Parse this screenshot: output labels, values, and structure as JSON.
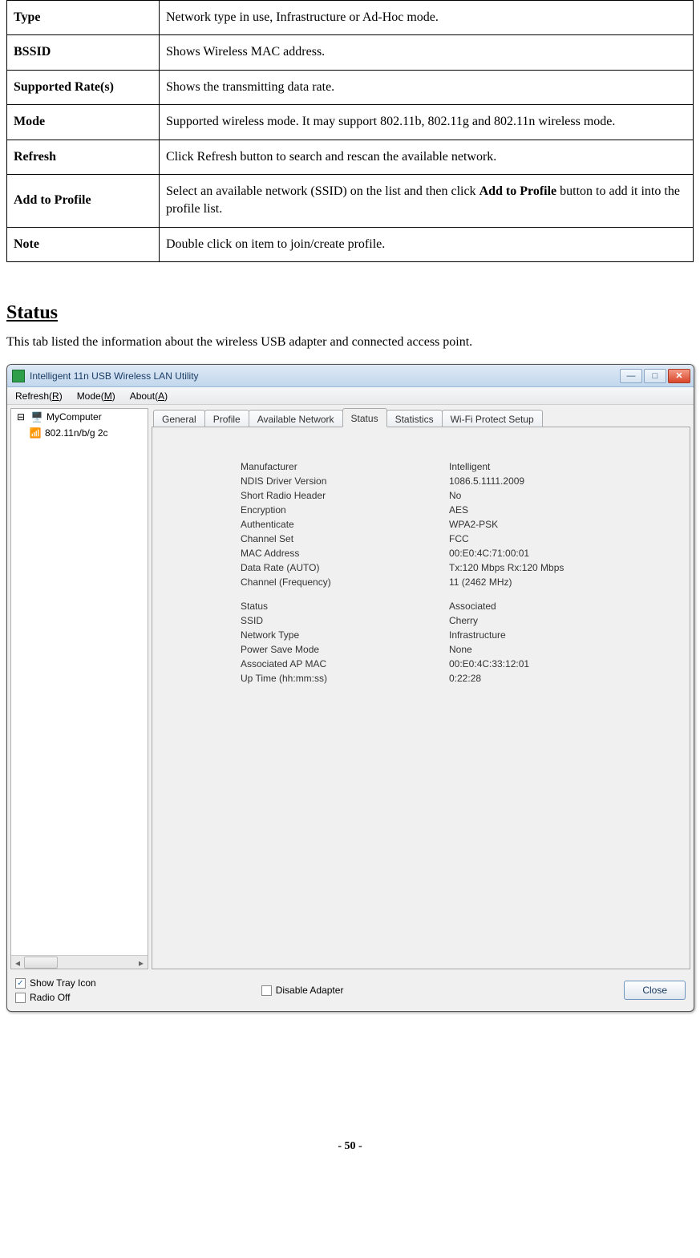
{
  "defs": [
    {
      "term": "Type",
      "desc": "Network type in use, Infrastructure or Ad-Hoc mode."
    },
    {
      "term": "BSSID",
      "desc": "Shows Wireless MAC address."
    },
    {
      "term": "Supported Rate(s)",
      "desc": "Shows the transmitting data rate."
    },
    {
      "term": "Mode",
      "desc": "Supported wireless mode. It may support 802.11b, 802.11g and 802.11n wireless mode."
    },
    {
      "term": "Refresh",
      "desc": "Click Refresh button to search and rescan the available network."
    },
    {
      "term": "Add to Profile",
      "desc_pre": "Select an available network (SSID) on the list and then click ",
      "desc_bold": "Add to Profile",
      "desc_post": " button to add it into the profile list."
    },
    {
      "term": "Note",
      "desc": "Double click on item to join/create profile."
    }
  ],
  "section": {
    "title": "Status",
    "desc": "This tab listed the information about the wireless USB adapter and connected access point."
  },
  "app": {
    "title": "Intelligent 11n USB Wireless LAN Utility",
    "menu": {
      "refresh": "Refresh(R)",
      "mode": "Mode(M)",
      "about": "About(A)"
    },
    "tree": {
      "root": "MyComputer",
      "child": "802.11n/b/g 2c"
    },
    "tabs": [
      "General",
      "Profile",
      "Available Network",
      "Status",
      "Statistics",
      "Wi-Fi Protect Setup"
    ],
    "active_tab": "Status",
    "status_block1": [
      {
        "k": "Manufacturer",
        "v": "Intelligent"
      },
      {
        "k": "NDIS Driver Version",
        "v": "1086.5.1111.2009"
      },
      {
        "k": "Short Radio Header",
        "v": "No"
      },
      {
        "k": "Encryption",
        "v": "AES"
      },
      {
        "k": "Authenticate",
        "v": "WPA2-PSK"
      },
      {
        "k": "Channel Set",
        "v": "FCC"
      },
      {
        "k": "MAC Address",
        "v": "00:E0:4C:71:00:01"
      },
      {
        "k": "Data Rate (AUTO)",
        "v": "Tx:120 Mbps Rx:120 Mbps"
      },
      {
        "k": "Channel (Frequency)",
        "v": "11 (2462 MHz)"
      }
    ],
    "status_block2": [
      {
        "k": "Status",
        "v": "Associated"
      },
      {
        "k": "SSID",
        "v": "Cherry"
      },
      {
        "k": "Network Type",
        "v": "Infrastructure"
      },
      {
        "k": "Power Save Mode",
        "v": "None"
      },
      {
        "k": "Associated AP MAC",
        "v": "00:E0:4C:33:12:01"
      },
      {
        "k": "Up Time (hh:mm:ss)",
        "v": "0:22:28"
      }
    ],
    "checkboxes": {
      "show_tray": {
        "label": "Show Tray Icon",
        "checked": true
      },
      "radio_off": {
        "label": "Radio Off",
        "checked": false
      },
      "disable_adapter": {
        "label": "Disable Adapter",
        "checked": false
      }
    },
    "close_label": "Close"
  },
  "page_number": "- 50 -"
}
